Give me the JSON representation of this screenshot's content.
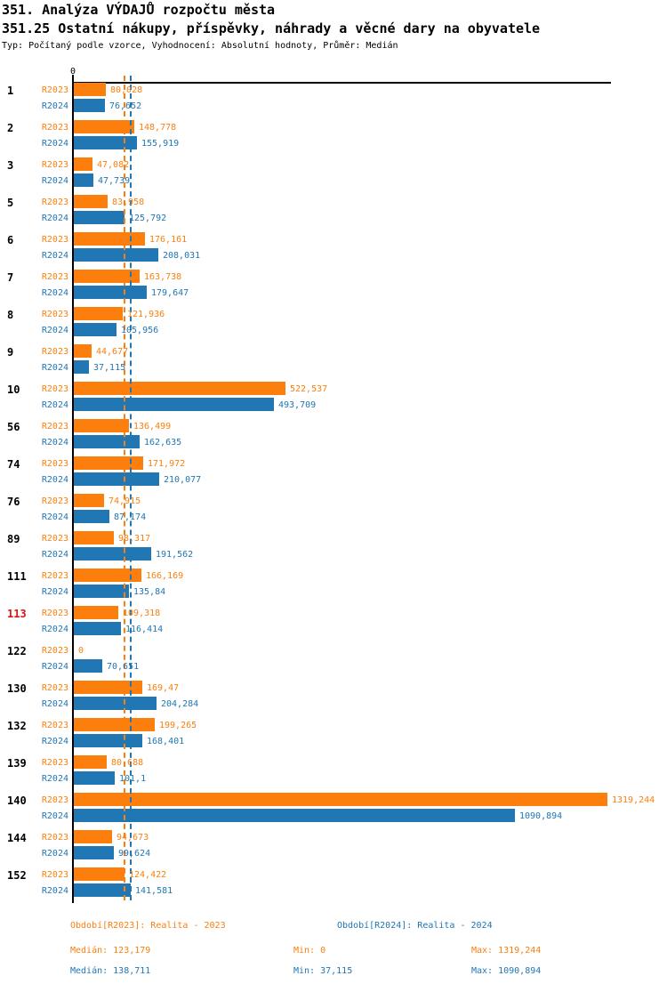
{
  "header": {
    "title1": "351. Analýza VÝDAJŮ rozpočtu města",
    "title2": "351.25 Ostatní nákupy, příspěvky, náhrady a věcné dary na obyvatele",
    "subtitle": "Typ: Počítaný podle vzorce, Vyhodnocení: Absolutní hodnoty, Průměr: Medián"
  },
  "colors": {
    "r2023": "#FC7F0D",
    "r2024": "#2077B4",
    "highlighted_category": "#E01212",
    "category": "#000000",
    "axis": "#000000"
  },
  "chart_data": {
    "type": "bar",
    "orientation": "horizontal",
    "title": "351.25 Ostatní nákupy, příspěvky, náhrady a věcné dary na obyvatele",
    "xlabel": "",
    "ylabel": "",
    "xlim": [
      0,
      1330
    ],
    "axis_zero_label": "0",
    "grid": false,
    "legend_position": "bottom",
    "categories": [
      "1",
      "2",
      "3",
      "5",
      "6",
      "7",
      "8",
      "9",
      "10",
      "56",
      "74",
      "76",
      "89",
      "111",
      "113",
      "122",
      "130",
      "132",
      "139",
      "140",
      "144",
      "152"
    ],
    "highlighted_categories": [
      "113"
    ],
    "series": [
      {
        "name": "R2023",
        "color": "#FC7F0D",
        "values": [
          80.028,
          148.778,
          47.082,
          83.958,
          176.161,
          163.738,
          121.936,
          44.677,
          522.537,
          136.499,
          171.972,
          74.915,
          98.317,
          166.169,
          109.318,
          0,
          169.47,
          199.265,
          80.688,
          1319.244,
          94.673,
          124.422
        ],
        "labels": [
          "80,028",
          "148,778",
          "47,082",
          "83,958",
          "176,161",
          "163,738",
          "121,936",
          "44,677",
          "522,537",
          "136,499",
          "171,972",
          "74,915",
          "98,317",
          "166,169",
          "109,318",
          "0",
          "169,47",
          "199,265",
          "80,688",
          "1319,244",
          "94,673",
          "124,422"
        ]
      },
      {
        "name": "R2024",
        "color": "#2077B4",
        "values": [
          76.652,
          155.919,
          47.739,
          125.792,
          208.031,
          179.647,
          105.956,
          37.115,
          493.709,
          162.635,
          210.077,
          87.174,
          191.562,
          135.84,
          116.414,
          70.651,
          204.284,
          168.401,
          101.1,
          1090.894,
          99.624,
          141.581
        ],
        "labels": [
          "76,652",
          "155,919",
          "47,739",
          "125,792",
          "208,031",
          "179,647",
          "105,956",
          "37,115",
          "493,709",
          "162,635",
          "210,077",
          "87,174",
          "191,562",
          "135,84",
          "116,414",
          "70,651",
          "204,284",
          "168,401",
          "101,1",
          "1090,894",
          "99,624",
          "141,581"
        ]
      }
    ],
    "median_lines": {
      "r2023": 123.179,
      "r2024": 138.711
    }
  },
  "legend": {
    "r2023_period": "Období[R2023]: Realita - 2023",
    "r2024_period": "Období[R2024]: Realita - 2024",
    "r2023_median": "Medián: 123,179",
    "r2023_min": "Min: 0",
    "r2023_max": "Max: 1319,244",
    "r2024_median": "Medián: 138,711",
    "r2024_min": "Min: 37,115",
    "r2024_max": "Max: 1090,894"
  }
}
